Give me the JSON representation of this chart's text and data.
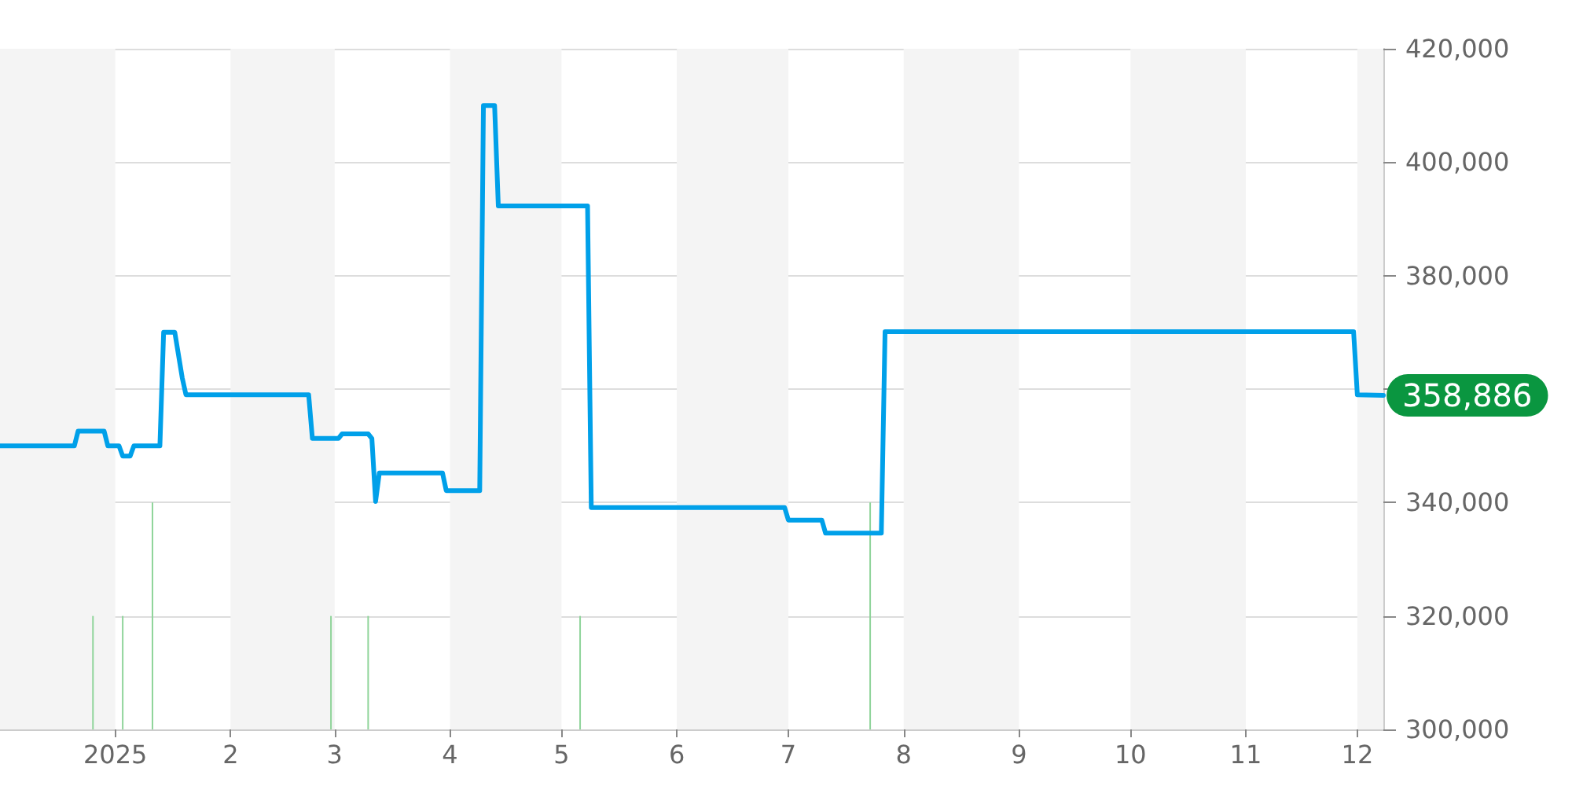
{
  "chart_data": {
    "type": "line",
    "xlim": [
      "2024-12-01",
      "2025-12-08"
    ],
    "xticks": [
      {
        "value": "2025-01-01",
        "label": "2025"
      },
      {
        "value": "2025-02-01",
        "label": "2"
      },
      {
        "value": "2025-03-01",
        "label": "3"
      },
      {
        "value": "2025-04-01",
        "label": "4"
      },
      {
        "value": "2025-05-01",
        "label": "5"
      },
      {
        "value": "2025-06-01",
        "label": "6"
      },
      {
        "value": "2025-07-01",
        "label": "7"
      },
      {
        "value": "2025-08-01",
        "label": "8"
      },
      {
        "value": "2025-09-01",
        "label": "9"
      },
      {
        "value": "2025-10-01",
        "label": "10"
      },
      {
        "value": "2025-11-01",
        "label": "11"
      },
      {
        "value": "2025-12-01",
        "label": "12"
      }
    ],
    "ylim": [
      300000,
      420000
    ],
    "yticks": [
      {
        "value": 300000,
        "label": "300,000"
      },
      {
        "value": 320000,
        "label": "320,000"
      },
      {
        "value": 340000,
        "label": "340,000"
      },
      {
        "value": 360000,
        "label": null
      },
      {
        "value": 380000,
        "label": "380,000"
      },
      {
        "value": 400000,
        "label": "400,000"
      },
      {
        "value": 420000,
        "label": "420,000"
      }
    ],
    "grid": "y",
    "marker": "none",
    "line_style": "solid",
    "bands": [
      {
        "axis": "x",
        "from": "2024-12-01",
        "to": "2025-01-01",
        "color": "#f4f4f4"
      },
      {
        "axis": "x",
        "from": "2025-02-01",
        "to": "2025-03-01",
        "color": "#f4f4f4"
      },
      {
        "axis": "x",
        "from": "2025-04-01",
        "to": "2025-05-01",
        "color": "#f4f4f4"
      },
      {
        "axis": "x",
        "from": "2025-06-01",
        "to": "2025-07-01",
        "color": "#f4f4f4"
      },
      {
        "axis": "x",
        "from": "2025-08-01",
        "to": "2025-09-01",
        "color": "#f4f4f4"
      },
      {
        "axis": "x",
        "from": "2025-10-01",
        "to": "2025-11-01",
        "color": "#f4f4f4"
      },
      {
        "axis": "x",
        "from": "2025-12-01",
        "to": "2025-12-08",
        "color": "#f4f4f4"
      }
    ],
    "series": [
      {
        "type": "bar",
        "color": "#8fd49a",
        "x": [
          "2024-12-26",
          "2025-01-03",
          "2025-01-11",
          "2025-02-28",
          "2025-03-10",
          "2025-05-06",
          "2025-07-23"
        ],
        "values": [
          320000,
          320000,
          340000,
          320000,
          320000,
          320000,
          340000
        ]
      },
      {
        "color": "#00a0e9",
        "x": [
          "2024-12-01",
          "2024-12-21",
          "2024-12-22",
          "2024-12-29",
          "2024-12-30",
          "2025-01-02",
          "2025-01-03",
          "2025-01-05",
          "2025-01-06",
          "2025-01-13",
          "2025-01-14",
          "2025-01-17",
          "2025-01-19",
          "2025-01-20",
          "2025-02-22",
          "2025-02-23",
          "2025-03-02",
          "2025-03-03",
          "2025-03-10",
          "2025-03-11",
          "2025-03-12",
          "2025-03-13",
          "2025-03-30",
          "2025-03-31",
          "2025-04-09",
          "2025-04-10",
          "2025-04-13",
          "2025-04-14",
          "2025-05-08",
          "2025-05-09",
          "2025-06-30",
          "2025-07-01",
          "2025-07-10",
          "2025-07-11",
          "2025-07-26",
          "2025-07-27",
          "2025-11-30",
          "2025-12-01",
          "2025-12-08"
        ],
        "values": [
          350000,
          350000,
          352600,
          352600,
          350000,
          350000,
          348200,
          348200,
          350000,
          350000,
          370000,
          370000,
          362000,
          359000,
          359000,
          351300,
          351300,
          352100,
          352100,
          351300,
          340200,
          345200,
          345200,
          342100,
          342100,
          410000,
          410000,
          392300,
          392300,
          339100,
          339100,
          336900,
          336900,
          334600,
          334600,
          370100,
          370100,
          359000,
          358886
        ],
        "value_labels": [
          null,
          null,
          null,
          null,
          null,
          null,
          null,
          null,
          null,
          null,
          null,
          null,
          null,
          null,
          null,
          null,
          null,
          null,
          null,
          null,
          null,
          null,
          null,
          null,
          null,
          null,
          null,
          null,
          null,
          null,
          null,
          null,
          null,
          null,
          null,
          null,
          null,
          null,
          "358,886"
        ]
      }
    ]
  }
}
